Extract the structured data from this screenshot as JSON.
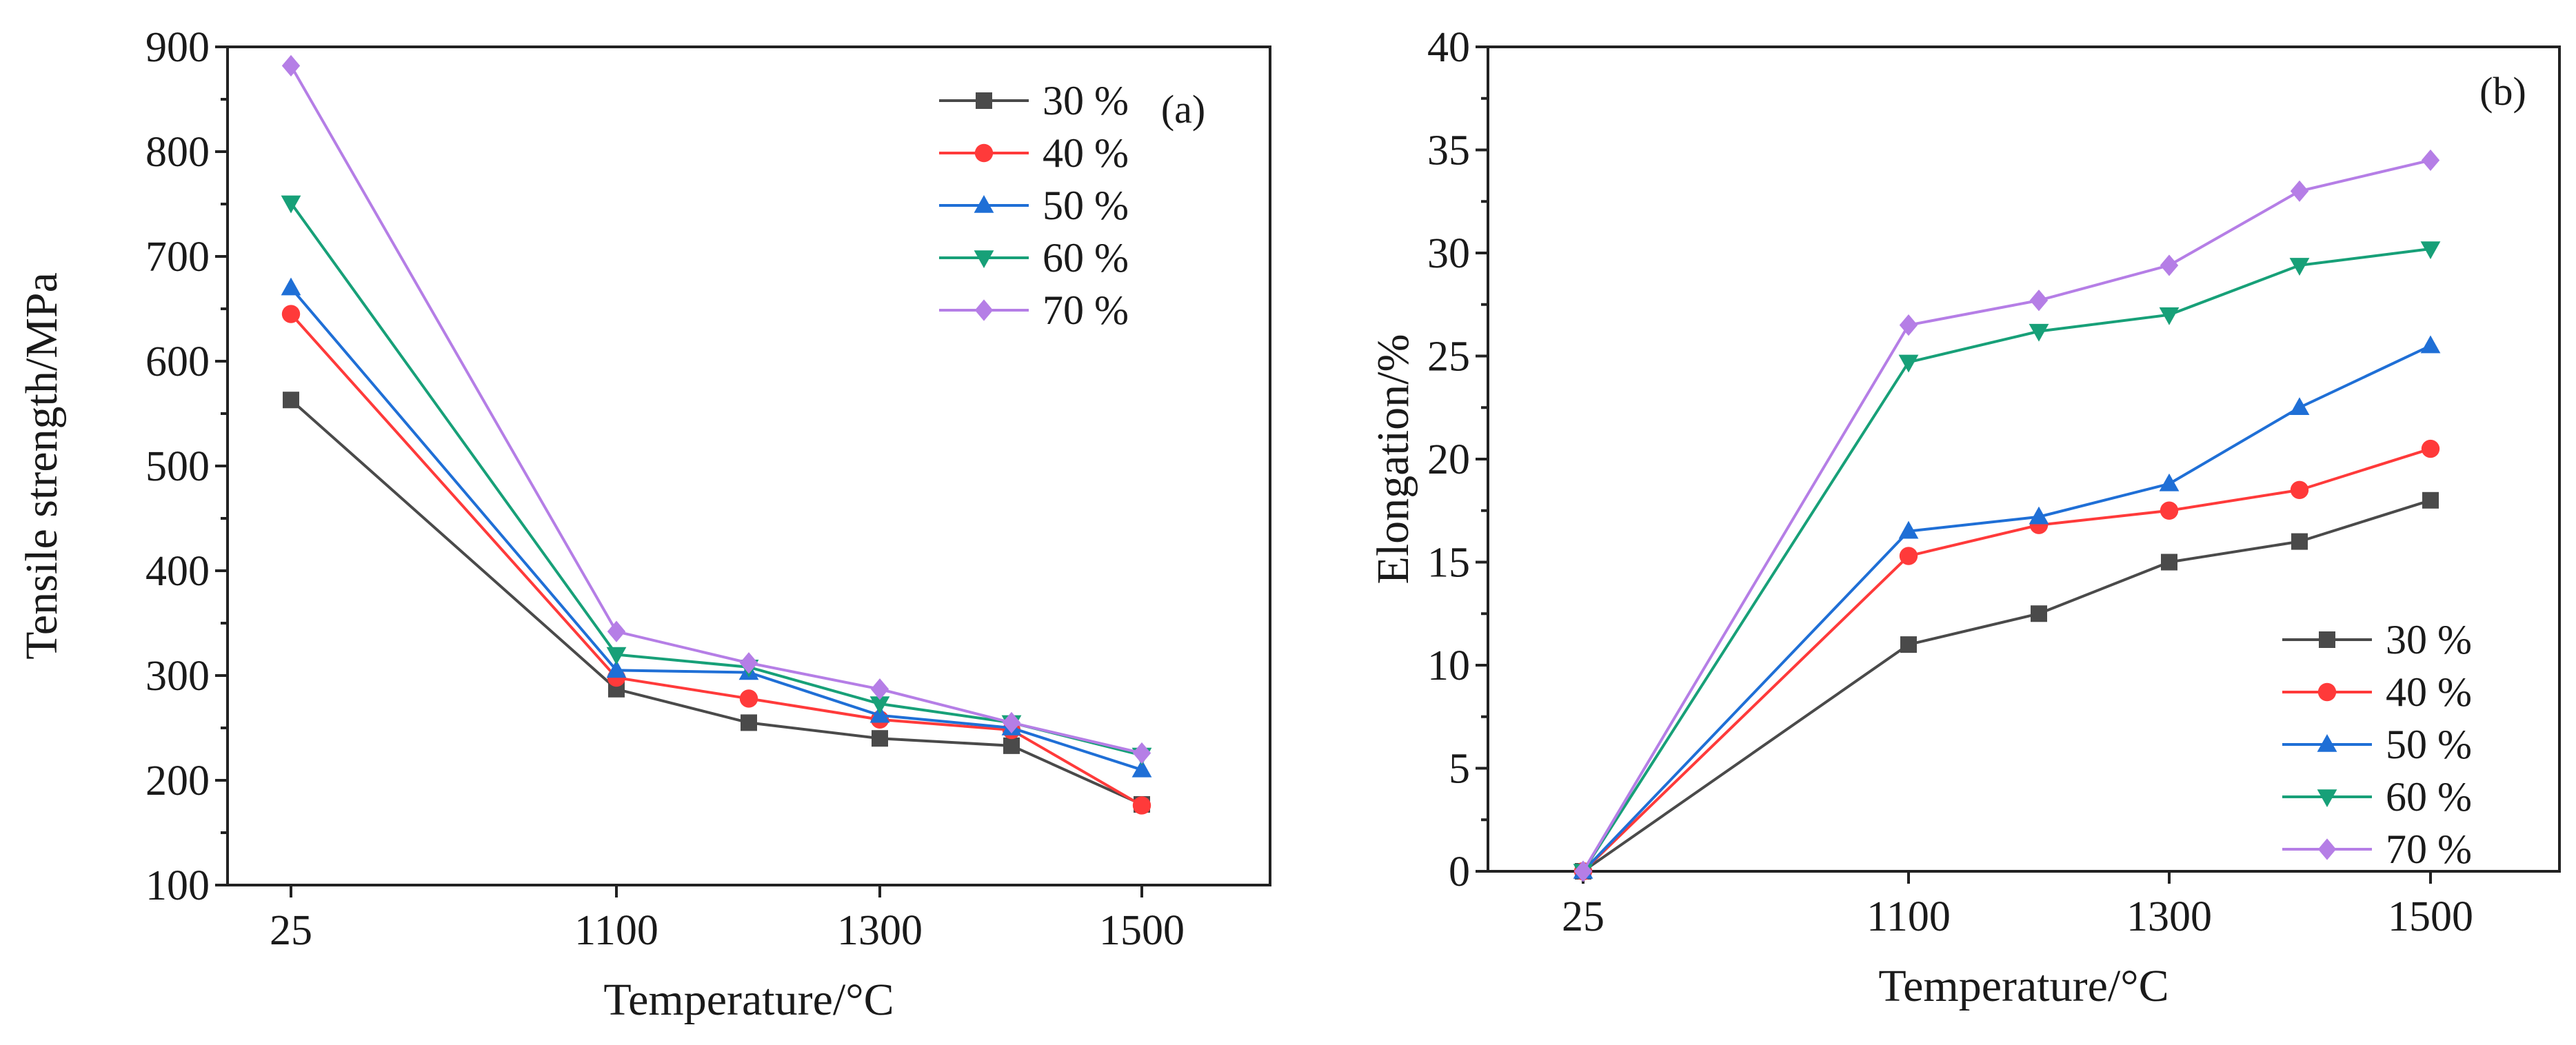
{
  "chart_data": [
    {
      "type": "line",
      "panel_label": "(a)",
      "xlabel": "Temperature/°C",
      "ylabel": "Tensile strength/MPa",
      "categories": [
        "25",
        "1100",
        "1200",
        "1300",
        "1400",
        "1500"
      ],
      "x_tick_labels": [
        "25",
        "1100",
        "1300",
        "1500"
      ],
      "ylim": [
        100,
        900
      ],
      "yticks": [
        "100",
        "200",
        "300",
        "400",
        "500",
        "600",
        "700",
        "800",
        "900"
      ],
      "legend_position": "top-right",
      "series": [
        {
          "name": "30 %",
          "marker": "square",
          "color": "#4a4a4a",
          "values": [
            563,
            287,
            255,
            240,
            233,
            177
          ]
        },
        {
          "name": "40 %",
          "marker": "circle",
          "color": "#ff3a3a",
          "values": [
            645,
            298,
            278,
            258,
            248,
            176
          ]
        },
        {
          "name": "50 %",
          "marker": "triangle-up",
          "color": "#1f6fd6",
          "values": [
            670,
            305,
            303,
            262,
            250,
            210
          ]
        },
        {
          "name": "60 %",
          "marker": "triangle-down",
          "color": "#17a078",
          "values": [
            751,
            320,
            308,
            273,
            255,
            224
          ]
        },
        {
          "name": "70 %",
          "marker": "diamond",
          "color": "#b57ee6",
          "values": [
            882,
            342,
            312,
            287,
            255,
            226
          ]
        }
      ]
    },
    {
      "type": "line",
      "panel_label": "(b)",
      "xlabel": "Temperature/°C",
      "ylabel": "Elongation/%",
      "categories": [
        "25",
        "1100",
        "1200",
        "1300",
        "1400",
        "1500"
      ],
      "x_tick_labels": [
        "25",
        "1100",
        "1300",
        "1500"
      ],
      "ylim": [
        0,
        40
      ],
      "yticks": [
        "0",
        "5",
        "10",
        "15",
        "20",
        "25",
        "30",
        "35",
        "40"
      ],
      "legend_position": "bottom-right",
      "series": [
        {
          "name": "30 %",
          "marker": "square",
          "color": "#4a4a4a",
          "values": [
            0,
            11.0,
            12.5,
            15.0,
            16.0,
            18.0
          ]
        },
        {
          "name": "40 %",
          "marker": "circle",
          "color": "#ff3a3a",
          "values": [
            0,
            15.3,
            16.8,
            17.5,
            18.5,
            20.5
          ]
        },
        {
          "name": "50 %",
          "marker": "triangle-up",
          "color": "#1f6fd6",
          "values": [
            0,
            16.5,
            17.2,
            18.8,
            22.5,
            25.5
          ]
        },
        {
          "name": "60 %",
          "marker": "triangle-down",
          "color": "#17a078",
          "values": [
            0,
            24.7,
            26.2,
            27.0,
            29.4,
            30.2
          ]
        },
        {
          "name": "70 %",
          "marker": "diamond",
          "color": "#b57ee6",
          "values": [
            0,
            26.5,
            27.7,
            29.4,
            33.0,
            34.5
          ]
        }
      ]
    }
  ]
}
